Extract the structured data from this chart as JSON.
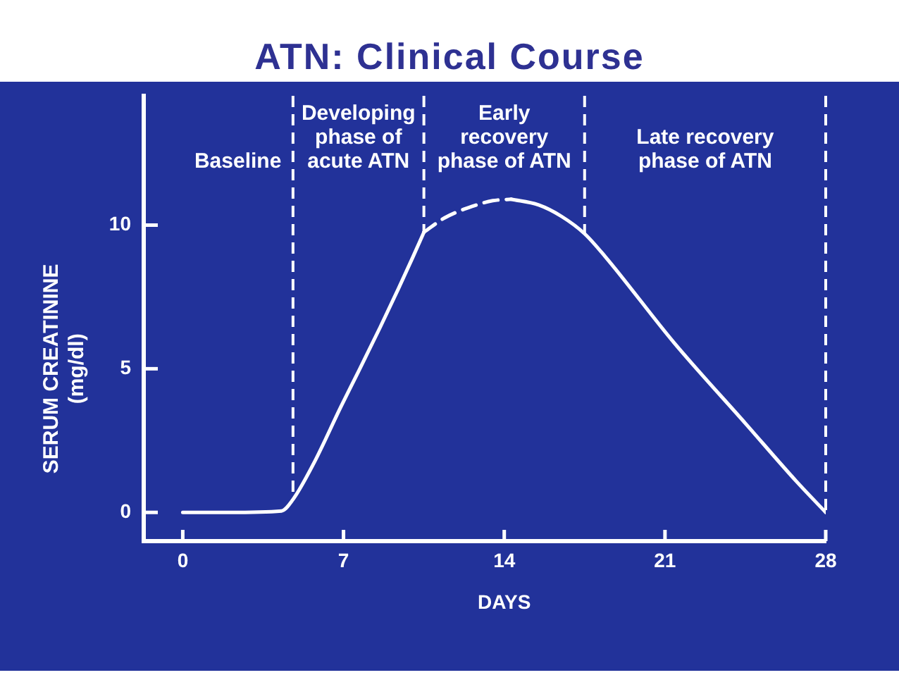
{
  "chart_data": {
    "type": "line",
    "title": "ATN: Clinical Course",
    "xlabel": "DAYS",
    "ylabel": "SERUM CREATININE\n(mg/dl)",
    "xlim": [
      -1.7,
      28
    ],
    "ylim": [
      -1,
      14.5
    ],
    "xticks": [
      0,
      7,
      14,
      21,
      28
    ],
    "yticks": [
      0,
      5,
      10
    ],
    "grid": false,
    "legend": false,
    "marker": "none",
    "series": [
      {
        "color": "#ffffff",
        "line_style": "solid",
        "x": [
          0,
          2,
          4.3,
          4.8,
          5.7,
          6.9,
          7.65,
          8.6,
          9.4,
          10.0,
          10.5
        ],
        "values": [
          0,
          0,
          0.05,
          0.45,
          1.7,
          3.7,
          4.9,
          6.45,
          7.8,
          8.85,
          9.75
        ]
      },
      {
        "color": "#ffffff",
        "line_style": "dashed",
        "x": [
          10.5,
          11.4,
          12.6,
          13.5,
          14.3
        ],
        "values": [
          9.75,
          10.25,
          10.65,
          10.85,
          10.9
        ]
      },
      {
        "color": "#ffffff",
        "line_style": "solid",
        "x": [
          14.3,
          15.5,
          16.5,
          17.5,
          18.4,
          21.4,
          24.5,
          26.7,
          28
        ],
        "values": [
          10.9,
          10.7,
          10.3,
          9.7,
          8.9,
          5.9,
          3.1,
          1.1,
          0
        ]
      }
    ],
    "ref_lines": [
      {
        "axis": "x",
        "value": 4.8,
        "color": "#ffffff",
        "line_style": "dashed"
      },
      {
        "axis": "x",
        "value": 10.5,
        "color": "#ffffff",
        "line_style": "dashed"
      },
      {
        "axis": "x",
        "value": 17.5,
        "color": "#ffffff",
        "line_style": "dashed"
      },
      {
        "axis": "x",
        "value": 28,
        "color": "#ffffff",
        "line_style": "dashed"
      }
    ],
    "annotations": [
      "Baseline",
      "Developing\nphase of\nacute ATN",
      "Early\nrecovery\nphase of ATN",
      "Late recovery\nphase of ATN"
    ]
  }
}
